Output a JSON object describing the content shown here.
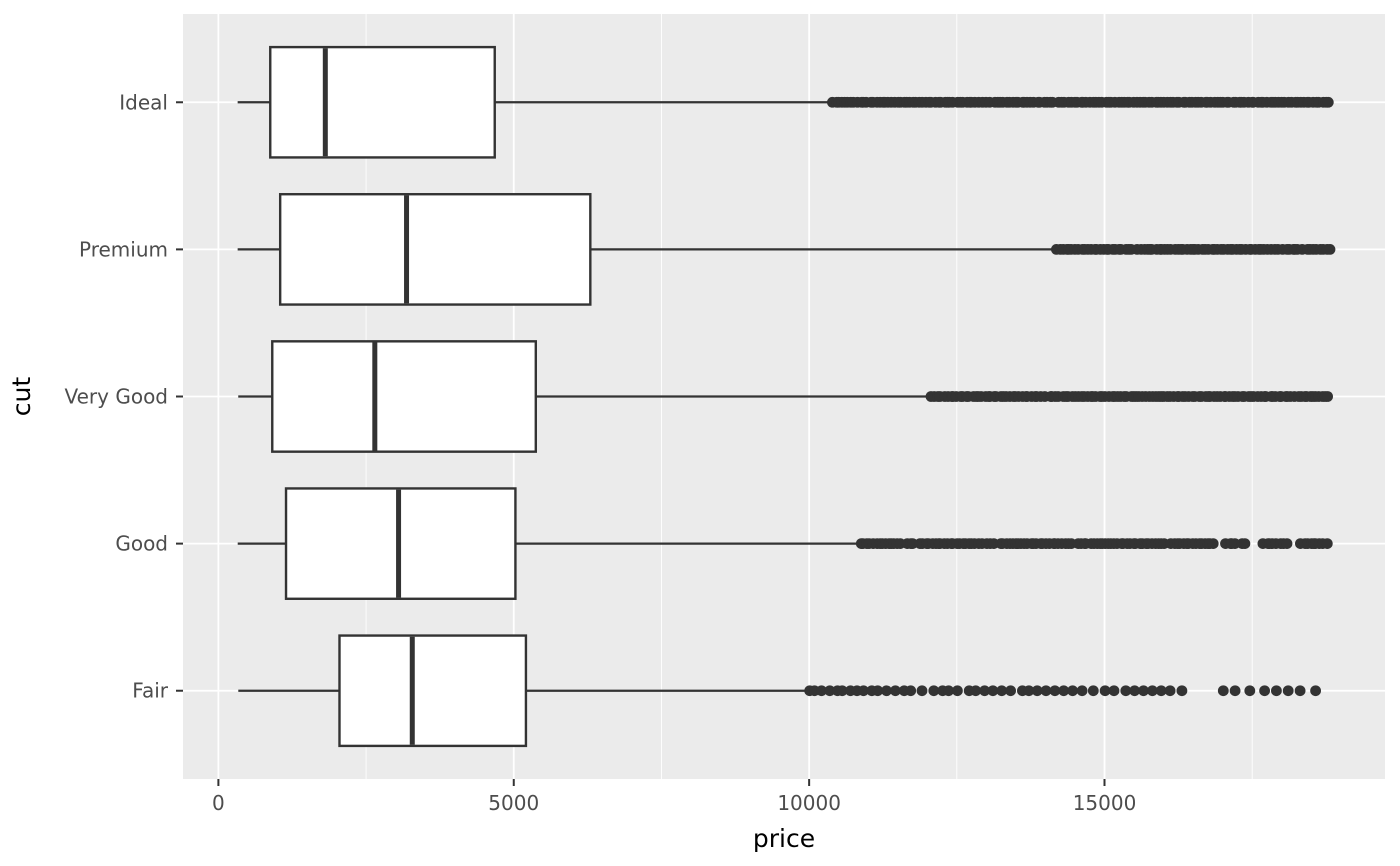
{
  "figure": {
    "background": "#FFFFFF"
  },
  "chart_data": {
    "type": "boxplot",
    "orientation": "horizontal",
    "title": "",
    "xlabel": "price",
    "ylabel": "cut",
    "x_ticks": [
      0,
      5000,
      10000,
      15000
    ],
    "x_minor_ticks": [
      2500,
      7500,
      12500,
      17500
    ],
    "xlim": [
      -599,
      19748
    ],
    "grid": "white major gridlines on gray panel, thin white minor vertical gridlines",
    "legend_position": "none",
    "categories_top_to_bottom": [
      "Ideal",
      "Premium",
      "Very Good",
      "Good",
      "Fair"
    ],
    "boxes": [
      {
        "category": "Ideal",
        "whisker_low": 326,
        "q1": 878,
        "median": 1810,
        "q3": 4678,
        "whisker_high": 10375,
        "outlier_segments": [
          [
            10400,
            18806,
            0.985
          ]
        ],
        "outlier_points": []
      },
      {
        "category": "Premium",
        "whisker_low": 326,
        "q1": 1046,
        "median": 3185,
        "q3": 6296,
        "whisker_high": 14160,
        "outlier_segments": [
          [
            14190,
            18823,
            0.975
          ]
        ],
        "outlier_points": []
      },
      {
        "category": "Very Good",
        "whisker_low": 336,
        "q1": 912,
        "median": 2648,
        "q3": 5373,
        "whisker_high": 12060,
        "outlier_segments": [
          [
            12080,
            18818,
            0.98
          ]
        ],
        "outlier_points": []
      },
      {
        "category": "Good",
        "whisker_low": 327,
        "q1": 1145,
        "median": 3050,
        "q3": 5028,
        "whisker_high": 10850,
        "outlier_segments": [
          [
            10870,
            16900,
            0.95
          ],
          [
            17060,
            17420,
            0.9
          ],
          [
            17700,
            18100,
            0.9
          ],
          [
            18330,
            18788,
            0.9
          ]
        ],
        "outlier_points": []
      },
      {
        "category": "Fair",
        "whisker_low": 337,
        "q1": 2050,
        "median": 3282,
        "q3": 5206,
        "whisker_high": 9930,
        "outlier_segments": [],
        "outlier_points": [
          10010,
          10090,
          10210,
          10350,
          10480,
          10560,
          10700,
          10810,
          10920,
          11060,
          11160,
          11310,
          11460,
          11610,
          11720,
          11910,
          12110,
          12260,
          12360,
          12510,
          12710,
          12820,
          12970,
          13110,
          13260,
          13410,
          13610,
          13720,
          13860,
          14010,
          14160,
          14310,
          14460,
          14620,
          14810,
          15010,
          15160,
          15360,
          15510,
          15660,
          15810,
          15960,
          16110,
          16310,
          17010,
          17210,
          17460,
          17710,
          17910,
          18110,
          18310,
          18574
        ]
      }
    ],
    "style": {
      "panel_bg": "#EBEBEB",
      "grid_major": "#FFFFFF",
      "grid_minor": "#FFFFFF",
      "box_stroke": "#333333",
      "box_fill": "#FFFFFF",
      "outlier_color": "#333333",
      "axis_text": "#4D4D4D",
      "axis_title": "#000000",
      "tick_color": "#333333"
    }
  }
}
